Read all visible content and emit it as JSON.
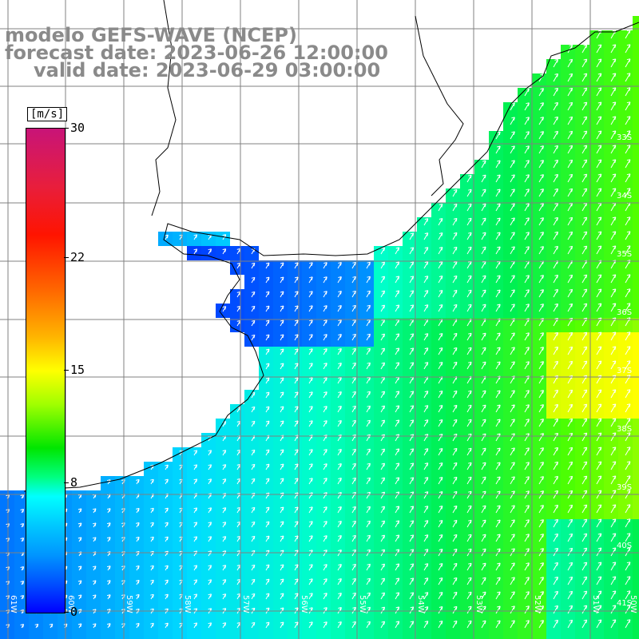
{
  "title": {
    "line1": "modelo GEFS-WAVE (NCEP)",
    "line2": "forecast date: 2023-06-26 12:00:00",
    "line3": "valid date: 2023-06-29 03:00:00"
  },
  "colorbar": {
    "unit": "[m/s]",
    "ticks": [
      "30",
      "22",
      "15",
      "8",
      "0"
    ],
    "min": 0,
    "max": 30
  },
  "longitude_labels": [
    "61W",
    "60W",
    "59W",
    "58W",
    "57W",
    "56W",
    "55W",
    "54W",
    "53W",
    "52W",
    "51W",
    "50W"
  ],
  "latitude_labels": [
    "33S",
    "34S",
    "35S",
    "36S",
    "37S",
    "38S",
    "39S",
    "40S",
    "41S"
  ],
  "colors": {
    "grid": "#808080",
    "coast": "#000000",
    "arrows": "#ffffff",
    "title": "#8a8a8a"
  }
}
